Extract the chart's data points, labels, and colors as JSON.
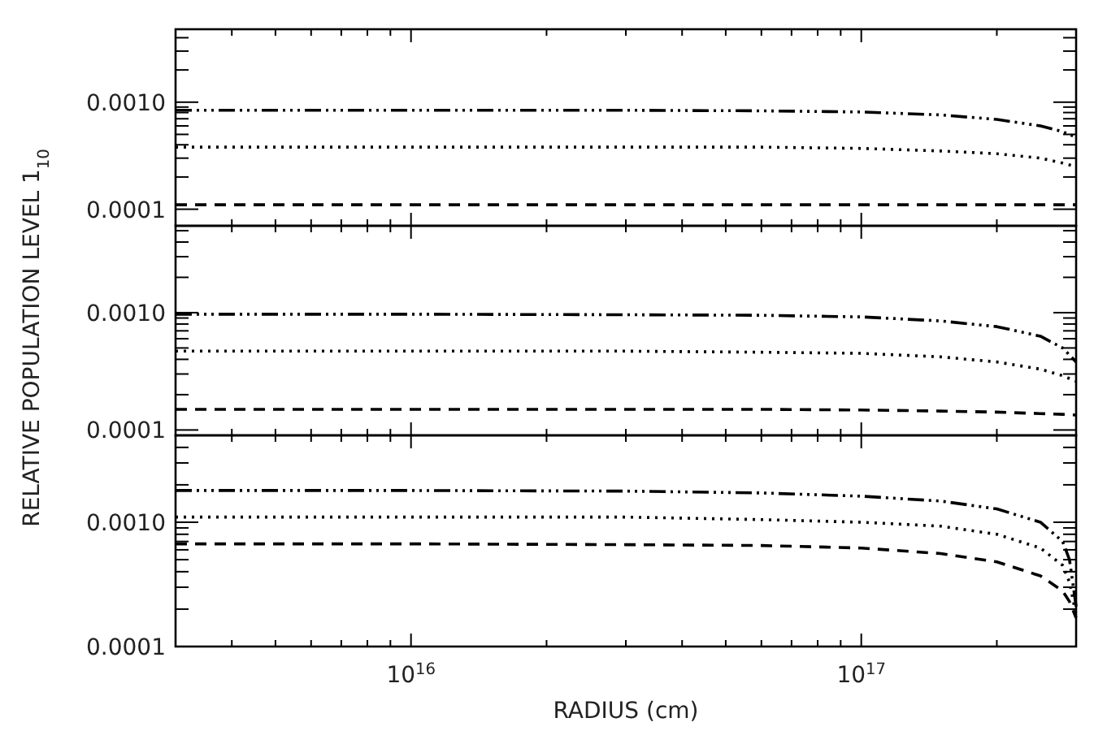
{
  "chart_data": [
    {
      "type": "line",
      "log": "xy",
      "tick_labels": "y",
      "grid": false,
      "xlim": [
        3000000000000000.0,
        3e+17
      ],
      "ylim": [
        7e-05,
        0.0048
      ],
      "xticks": [
        {
          "value": 4000000000000000.0,
          "label": null
        },
        {
          "value": 5000000000000000.0,
          "label": null
        },
        {
          "value": 6000000000000000.0,
          "label": null
        },
        {
          "value": 7000000000000000.0,
          "label": null
        },
        {
          "value": 8000000000000000.0,
          "label": null
        },
        {
          "value": 9000000000000000.0,
          "label": null
        },
        {
          "value": 1e+16,
          "label": null
        },
        {
          "value": 2e+16,
          "label": null
        },
        {
          "value": 3e+16,
          "label": null
        },
        {
          "value": 4e+16,
          "label": null
        },
        {
          "value": 5e+16,
          "label": null
        },
        {
          "value": 6e+16,
          "label": null
        },
        {
          "value": 7e+16,
          "label": null
        },
        {
          "value": 8e+16,
          "label": null
        },
        {
          "value": 9e+16,
          "label": null
        },
        {
          "value": 1e+17,
          "label": null
        },
        {
          "value": 2e+17,
          "label": null
        }
      ],
      "yticks": [
        {
          "value": 0.0001,
          "label": "0.0001"
        },
        {
          "value": 0.0002,
          "label": null
        },
        {
          "value": 0.0003,
          "label": null
        },
        {
          "value": 0.0004,
          "label": null
        },
        {
          "value": 0.0005,
          "label": null
        },
        {
          "value": 0.0006,
          "label": null
        },
        {
          "value": 0.0007,
          "label": null
        },
        {
          "value": 0.0008,
          "label": null
        },
        {
          "value": 0.0009,
          "label": null
        },
        {
          "value": 0.001,
          "label": "0.0010"
        },
        {
          "value": 0.002,
          "label": null
        },
        {
          "value": 0.003,
          "label": null
        },
        {
          "value": 0.004,
          "label": null
        }
      ],
      "x": [
        3000000000000000.0,
        1e+16,
        3e+16,
        6e+16,
        1e+17,
        1.5e+17,
        2e+17,
        2.5e+17,
        2.8e+17,
        3e+17
      ],
      "series": [
        {
          "color": "#000000",
          "line_style": "dashed",
          "values": [
            0.00011,
            0.00011,
            0.00011,
            0.00011,
            0.00011,
            0.00011,
            0.00011,
            0.00011,
            0.00011,
            0.00011
          ]
        },
        {
          "color": "#000000",
          "line_style": "dotted",
          "values": [
            0.00038,
            0.00038,
            0.00038,
            0.00038,
            0.00037,
            0.00035,
            0.00033,
            0.0003,
            0.00027,
            0.00025
          ]
        },
        {
          "color": "#000000",
          "line_style": "dashdotdot",
          "values": [
            0.00084,
            0.00084,
            0.00084,
            0.00083,
            0.00081,
            0.00076,
            0.00069,
            0.0006,
            0.00053,
            0.00047
          ]
        }
      ]
    },
    {
      "type": "line",
      "log": "xy",
      "tick_labels": "y",
      "grid": false,
      "ylabel": "RELATIVE POPULATION LEVEL 1$_{10}$",
      "xlim": [
        3000000000000000.0,
        3e+17
      ],
      "ylim": [
        9e-05,
        0.0055
      ],
      "xticks": [
        {
          "value": 4000000000000000.0,
          "label": null
        },
        {
          "value": 5000000000000000.0,
          "label": null
        },
        {
          "value": 6000000000000000.0,
          "label": null
        },
        {
          "value": 7000000000000000.0,
          "label": null
        },
        {
          "value": 8000000000000000.0,
          "label": null
        },
        {
          "value": 9000000000000000.0,
          "label": null
        },
        {
          "value": 1e+16,
          "label": null
        },
        {
          "value": 2e+16,
          "label": null
        },
        {
          "value": 3e+16,
          "label": null
        },
        {
          "value": 4e+16,
          "label": null
        },
        {
          "value": 5e+16,
          "label": null
        },
        {
          "value": 6e+16,
          "label": null
        },
        {
          "value": 7e+16,
          "label": null
        },
        {
          "value": 8e+16,
          "label": null
        },
        {
          "value": 9e+16,
          "label": null
        },
        {
          "value": 1e+17,
          "label": null
        },
        {
          "value": 2e+17,
          "label": null
        }
      ],
      "yticks": [
        {
          "value": 0.0001,
          "label": "0.0001"
        },
        {
          "value": 0.0002,
          "label": null
        },
        {
          "value": 0.0003,
          "label": null
        },
        {
          "value": 0.0004,
          "label": null
        },
        {
          "value": 0.0005,
          "label": null
        },
        {
          "value": 0.0006,
          "label": null
        },
        {
          "value": 0.0007,
          "label": null
        },
        {
          "value": 0.0008,
          "label": null
        },
        {
          "value": 0.0009,
          "label": null
        },
        {
          "value": 0.001,
          "label": "0.0010"
        },
        {
          "value": 0.002,
          "label": null
        },
        {
          "value": 0.003,
          "label": null
        },
        {
          "value": 0.004,
          "label": null
        },
        {
          "value": 0.005,
          "label": null
        }
      ],
      "x": [
        3000000000000000.0,
        1e+16,
        3e+16,
        6e+16,
        1e+17,
        1.5e+17,
        2e+17,
        2.5e+17,
        2.8e+17,
        3e+17
      ],
      "series": [
        {
          "color": "#000000",
          "line_style": "dashed",
          "values": [
            0.00015,
            0.00015,
            0.00015,
            0.00015,
            0.000148,
            0.000145,
            0.000142,
            0.000138,
            0.000136,
            0.000134
          ]
        },
        {
          "color": "#000000",
          "line_style": "dotted",
          "values": [
            0.00047,
            0.00047,
            0.00047,
            0.00046,
            0.00045,
            0.00042,
            0.00038,
            0.00033,
            0.00029,
            0.00026
          ]
        },
        {
          "color": "#000000",
          "line_style": "dashdotdot",
          "values": [
            0.00097,
            0.00097,
            0.00096,
            0.00095,
            0.00092,
            0.00085,
            0.00076,
            0.00063,
            0.0005,
            0.00038
          ]
        }
      ]
    },
    {
      "type": "line",
      "log": "xy",
      "grid": false,
      "xlabel": "RADIUS (cm)",
      "xlim": [
        3000000000000000.0,
        3e+17
      ],
      "ylim": [
        0.0001,
        0.005
      ],
      "xticks": [
        {
          "value": 4000000000000000.0,
          "label": null
        },
        {
          "value": 5000000000000000.0,
          "label": null
        },
        {
          "value": 6000000000000000.0,
          "label": null
        },
        {
          "value": 7000000000000000.0,
          "label": null
        },
        {
          "value": 8000000000000000.0,
          "label": null
        },
        {
          "value": 9000000000000000.0,
          "label": null
        },
        {
          "value": 1e+16,
          "label": "10$^{16}$"
        },
        {
          "value": 2e+16,
          "label": null
        },
        {
          "value": 3e+16,
          "label": null
        },
        {
          "value": 4e+16,
          "label": null
        },
        {
          "value": 5e+16,
          "label": null
        },
        {
          "value": 6e+16,
          "label": null
        },
        {
          "value": 7e+16,
          "label": null
        },
        {
          "value": 8e+16,
          "label": null
        },
        {
          "value": 9e+16,
          "label": null
        },
        {
          "value": 1e+17,
          "label": "10$^{17}$"
        },
        {
          "value": 2e+17,
          "label": null
        }
      ],
      "yticks": [
        {
          "value": 0.0001,
          "label": "0.0001"
        },
        {
          "value": 0.0002,
          "label": null
        },
        {
          "value": 0.0003,
          "label": null
        },
        {
          "value": 0.0004,
          "label": null
        },
        {
          "value": 0.0005,
          "label": null
        },
        {
          "value": 0.0006,
          "label": null
        },
        {
          "value": 0.0007,
          "label": null
        },
        {
          "value": 0.0008,
          "label": null
        },
        {
          "value": 0.0009,
          "label": null
        },
        {
          "value": 0.001,
          "label": "0.0010"
        },
        {
          "value": 0.002,
          "label": null
        },
        {
          "value": 0.003,
          "label": null
        },
        {
          "value": 0.004,
          "label": null
        }
      ],
      "x": [
        3000000000000000.0,
        1e+16,
        3e+16,
        6e+16,
        1e+17,
        1.5e+17,
        2e+17,
        2.5e+17,
        2.8e+17,
        2.9e+17,
        3e+17
      ],
      "series": [
        {
          "color": "#000000",
          "line_style": "dashed",
          "values": [
            0.00067,
            0.00067,
            0.00066,
            0.00065,
            0.00062,
            0.00056,
            0.00048,
            0.00037,
            0.00028,
            0.00023,
            0.00017
          ]
        },
        {
          "color": "#000000",
          "line_style": "dotted",
          "values": [
            0.0011,
            0.0011,
            0.0011,
            0.00105,
            0.001,
            0.00093,
            0.0008,
            0.00062,
            0.00045,
            0.00033,
            0.00018
          ]
        },
        {
          "color": "#000000",
          "line_style": "dashdotdot",
          "values": [
            0.0018,
            0.0018,
            0.00178,
            0.00172,
            0.00162,
            0.00148,
            0.00128,
            0.001,
            0.0007,
            0.0005,
            0.00021
          ]
        }
      ]
    }
  ]
}
